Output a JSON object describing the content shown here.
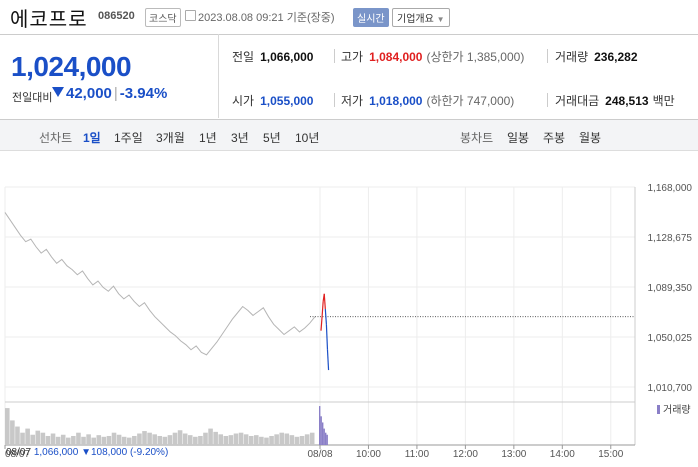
{
  "header": {
    "stock_name": "에코프로",
    "stock_code": "086520",
    "market": "코스닥",
    "timestamp": "2023.08.08 09:21",
    "basis": "기준(장중)",
    "realtime_label": "실시간",
    "company_info_label": "기업개요"
  },
  "summary": {
    "price": "1,024,000",
    "prev_label": "전일대비",
    "change": "42,000",
    "change_pct": "-3.94%",
    "prev_close": {
      "label": "전일",
      "value": "1,066,000"
    },
    "high": {
      "label": "고가",
      "value": "1,084,000",
      "note": "(상한가 1,385,000)"
    },
    "volume": {
      "label": "거래량",
      "value": "236,282"
    },
    "open": {
      "label": "시가",
      "value": "1,055,000"
    },
    "low": {
      "label": "저가",
      "value": "1,018,000",
      "note": "(하한가 747,000)"
    },
    "amount": {
      "label": "거래대금",
      "value": "248,513",
      "unit": "백만"
    }
  },
  "tabs": {
    "line_chart_label": "선차트",
    "periods": [
      "1일",
      "1주일",
      "3개월",
      "1년",
      "3년",
      "5년",
      "10년"
    ],
    "active_period": "1일",
    "candle_label": "봉차트",
    "candles": [
      "일봉",
      "주봉",
      "월봉"
    ]
  },
  "chart_data": {
    "type": "line",
    "y_ticks": [
      "1,168,000",
      "1,128,675",
      "1,089,350",
      "1,050,025",
      "1,010,700"
    ],
    "ylim": [
      1010700,
      1168000
    ],
    "x_ticks": [
      "08/07",
      "08/08",
      "10:00",
      "11:00",
      "12:00",
      "13:00",
      "14:00",
      "15:00"
    ],
    "legend_volume": "거래량",
    "reference_price": 1066000,
    "prev_day_series": [
      1148000,
      1142000,
      1136000,
      1130000,
      1125000,
      1127000,
      1121000,
      1116000,
      1119000,
      1113000,
      1108000,
      1111000,
      1106000,
      1103000,
      1099000,
      1102000,
      1096000,
      1091000,
      1094000,
      1089000,
      1086000,
      1090000,
      1084000,
      1080000,
      1083000,
      1078000,
      1074000,
      1077000,
      1071000,
      1066000,
      1062000,
      1058000,
      1054000,
      1051000,
      1047000,
      1044000,
      1040000,
      1043000,
      1038000,
      1036000,
      1041000,
      1046000,
      1052000,
      1058000,
      1064000,
      1069000,
      1074000,
      1071000,
      1067000,
      1070000,
      1073000,
      1066000,
      1060000,
      1056000,
      1052000,
      1055000,
      1058000,
      1054000,
      1057000,
      1061000,
      1066000
    ],
    "today_series": [
      1055000,
      1066000,
      1078000,
      1084000,
      1072000,
      1060000,
      1040000,
      1024000
    ],
    "prev_day_volume": [
      90,
      60,
      45,
      30,
      40,
      25,
      35,
      30,
      22,
      28,
      20,
      25,
      18,
      22,
      30,
      20,
      26,
      18,
      24,
      20,
      22,
      30,
      25,
      20,
      18,
      22,
      28,
      34,
      30,
      26,
      22,
      20,
      24,
      30,
      36,
      28,
      24,
      20,
      22,
      30,
      40,
      32,
      26,
      22,
      24,
      28,
      30,
      26,
      22,
      24,
      20,
      18,
      22,
      26,
      30,
      28,
      24,
      20,
      22,
      26,
      30
    ],
    "today_volume": [
      95,
      70,
      55,
      40,
      30,
      25
    ],
    "bottom_label": {
      "date": "08/07",
      "price": "1,066,000",
      "change": "108,000",
      "change_pct": "(-9.20%)"
    },
    "colors": {
      "up": "#e02020",
      "down": "#1a4fc7",
      "prev": "#b5b5b5",
      "volume_prev": "#c8c8c8",
      "volume_today": "#8a7fc7"
    }
  }
}
